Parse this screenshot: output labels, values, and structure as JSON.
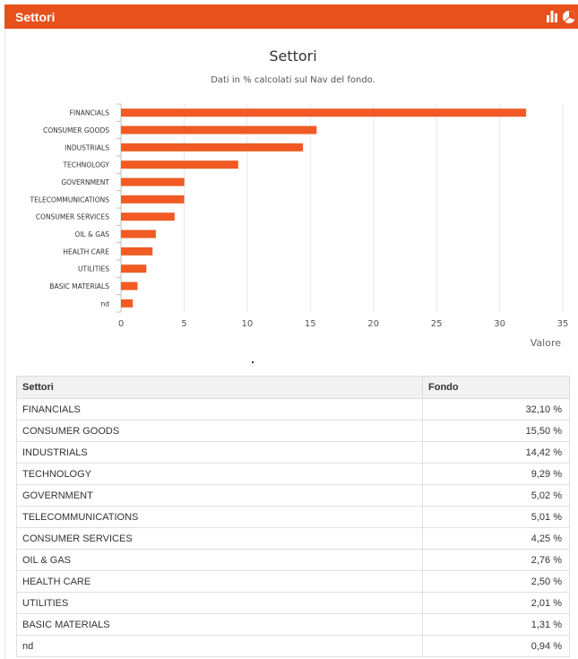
{
  "header": {
    "title": "Settori",
    "bar_chart_icon": "bar-chart-icon",
    "pie_chart_icon": "pie-chart-icon"
  },
  "colors": {
    "accent": "#e8501c",
    "bar": "#f15a24",
    "grid": "#e6e6e6"
  },
  "chart_data": {
    "type": "bar",
    "orientation": "horizontal",
    "title": "Settori",
    "subtitle": "Dati in % calcolati sul Nav del fondo.",
    "xlabel": "Valore",
    "ylabel": "",
    "xlim": [
      0,
      35
    ],
    "xticks": [
      "0",
      "5",
      "10",
      "15",
      "20",
      "25",
      "30",
      "35"
    ],
    "grid": true,
    "categories": [
      "FINANCIALS",
      "CONSUMER GOODS",
      "INDUSTRIALS",
      "TECHNOLOGY",
      "GOVERNMENT",
      "TELECOMMUNICATIONS",
      "CONSUMER SERVICES",
      "OIL & GAS",
      "HEALTH CARE",
      "UTILITIES",
      "BASIC MATERIALS",
      "nd"
    ],
    "values": [
      32.1,
      15.5,
      14.42,
      9.29,
      5.02,
      5.01,
      4.25,
      2.76,
      2.5,
      2.01,
      1.31,
      0.94
    ]
  },
  "table": {
    "headers": [
      "Settori",
      "Fondo"
    ],
    "rows": [
      {
        "sector": "FINANCIALS",
        "value": "32,10 %"
      },
      {
        "sector": "CONSUMER GOODS",
        "value": "15,50 %"
      },
      {
        "sector": "INDUSTRIALS",
        "value": "14,42 %"
      },
      {
        "sector": "TECHNOLOGY",
        "value": "9,29 %"
      },
      {
        "sector": "GOVERNMENT",
        "value": "5,02 %"
      },
      {
        "sector": "TELECOMMUNICATIONS",
        "value": "5,01 %"
      },
      {
        "sector": "CONSUMER SERVICES",
        "value": "4,25 %"
      },
      {
        "sector": "OIL & GAS",
        "value": "2,76 %"
      },
      {
        "sector": "HEALTH CARE",
        "value": "2,50 %"
      },
      {
        "sector": "UTILITIES",
        "value": "2,01 %"
      },
      {
        "sector": "BASIC MATERIALS",
        "value": "1,31 %"
      },
      {
        "sector": "nd",
        "value": "0,94 %"
      }
    ]
  }
}
